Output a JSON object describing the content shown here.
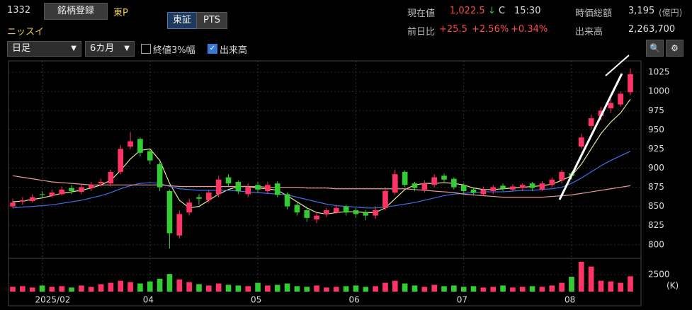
{
  "header": {
    "code": "1332",
    "register_button": "銘柄登録",
    "market": "東P",
    "name": "ニッスイ",
    "tabs": [
      "東証",
      "PTS"
    ],
    "price_label": "現在値",
    "price": "1,022.5",
    "arrow": "↓",
    "price_flag": "C",
    "time": "15:30",
    "change_label": "前日比",
    "change": "+25.5",
    "change_pct": "+2.56%",
    "change_pct2": "+0.34%",
    "mcap_label": "時価総額",
    "mcap": "3,195",
    "mcap_unit": "(億円)",
    "volume_label": "出来高",
    "volume": "2,263,700"
  },
  "toolbar": {
    "period": "日足",
    "range": "6カ月",
    "option1": "終値3%幅",
    "option2": "出来高"
  },
  "chart_data": {
    "type": "candlestick",
    "up_color": "#ff3366",
    "down_color": "#33cc33",
    "categories": [
      null,
      null,
      null,
      "2025/02",
      null,
      null,
      null,
      null,
      null,
      null,
      null,
      null,
      null,
      null,
      "04",
      null,
      null,
      null,
      null,
      null,
      null,
      null,
      null,
      null,
      null,
      "05",
      null,
      null,
      null,
      null,
      null,
      null,
      null,
      null,
      null,
      "06",
      null,
      null,
      null,
      null,
      null,
      null,
      null,
      null,
      null,
      null,
      "07",
      null,
      null,
      null,
      null,
      null,
      null,
      null,
      null,
      null,
      null,
      "08",
      null,
      null,
      null,
      null,
      null,
      null
    ],
    "open": [
      850,
      856,
      857,
      866,
      864,
      866,
      874,
      869,
      874,
      880,
      880,
      895,
      928,
      938,
      922,
      905,
      870,
      812,
      842,
      862,
      858,
      866,
      888,
      882,
      866,
      878,
      870,
      880,
      866,
      852,
      845,
      833,
      840,
      842,
      850,
      845,
      842,
      838,
      848,
      868,
      895,
      880,
      872,
      878,
      890,
      886,
      878,
      872,
      866,
      870,
      877,
      872,
      874,
      880,
      872,
      878,
      884,
      893,
      928,
      955,
      968,
      978,
      983,
      999
    ],
    "high": [
      860,
      862,
      866,
      870,
      872,
      876,
      878,
      879,
      882,
      886,
      898,
      930,
      947,
      940,
      925,
      908,
      872,
      845,
      860,
      866,
      872,
      890,
      892,
      884,
      880,
      882,
      882,
      883,
      868,
      856,
      848,
      842,
      848,
      852,
      852,
      848,
      845,
      850,
      875,
      898,
      897,
      882,
      884,
      892,
      893,
      888,
      880,
      875,
      876,
      878,
      880,
      879,
      880,
      882,
      883,
      888,
      898,
      895,
      945,
      970,
      980,
      990,
      1000,
      1030
    ],
    "low": [
      848,
      852,
      855,
      862,
      862,
      864,
      866,
      866,
      870,
      876,
      876,
      892,
      925,
      915,
      905,
      870,
      795,
      808,
      838,
      852,
      855,
      862,
      876,
      866,
      862,
      868,
      866,
      862,
      846,
      838,
      830,
      828,
      836,
      840,
      838,
      835,
      832,
      834,
      845,
      865,
      875,
      870,
      868,
      875,
      882,
      872,
      866,
      864,
      864,
      866,
      870,
      870,
      870,
      870,
      870,
      875,
      880,
      885,
      925,
      950,
      962,
      972,
      980,
      995
    ],
    "close": [
      855,
      858,
      862,
      865,
      868,
      872,
      870,
      875,
      878,
      882,
      895,
      925,
      935,
      920,
      910,
      875,
      815,
      840,
      855,
      860,
      868,
      885,
      880,
      870,
      875,
      872,
      878,
      865,
      850,
      842,
      835,
      838,
      845,
      848,
      842,
      840,
      838,
      845,
      870,
      892,
      878,
      874,
      880,
      888,
      885,
      875,
      870,
      868,
      872,
      875,
      873,
      876,
      878,
      874,
      880,
      885,
      895,
      890,
      940,
      965,
      975,
      985,
      997,
      1022.5
    ],
    "volume": [
      700,
      800,
      600,
      900,
      700,
      800,
      600,
      900,
      700,
      1100,
      1300,
      1600,
      1400,
      1200,
      1500,
      1900,
      2600,
      1800,
      1400,
      1100,
      900,
      1200,
      1000,
      900,
      800,
      1300,
      900,
      1000,
      1200,
      800,
      700,
      900,
      600,
      700,
      800,
      900,
      700,
      800,
      1300,
      1600,
      1200,
      900,
      700,
      1000,
      800,
      900,
      700,
      800,
      600,
      700,
      900,
      600,
      700,
      800,
      700,
      900,
      1300,
      2200,
      4400,
      3700,
      1600,
      1500,
      1300,
      2263.7
    ],
    "ma_lines": [
      {
        "color": "#e8e890",
        "values": [
          856,
          857,
          859,
          861,
          864,
          867,
          869,
          871,
          874,
          878,
          884,
          897,
          912,
          923,
          925,
          910,
          880,
          858,
          848,
          850,
          858,
          866,
          872,
          876,
          876,
          874,
          873,
          871,
          864,
          856,
          848,
          842,
          840,
          842,
          843,
          843,
          842,
          842,
          848,
          860,
          872,
          878,
          880,
          880,
          881,
          880,
          878,
          874,
          872,
          872,
          873,
          874,
          875,
          876,
          877,
          879,
          884,
          890,
          905,
          925,
          945,
          960,
          972,
          990
        ]
      },
      {
        "color": "#3f6fe8",
        "values": [
          848,
          849,
          850,
          851,
          852,
          854,
          856,
          858,
          861,
          864,
          868,
          873,
          877,
          880,
          881,
          880,
          876,
          873,
          872,
          871,
          871,
          871,
          871,
          870,
          869,
          868,
          867,
          866,
          865,
          862,
          859,
          856,
          853,
          851,
          850,
          849,
          848,
          848,
          849,
          851,
          853,
          855,
          858,
          861,
          864,
          866,
          867,
          868,
          869,
          869,
          869,
          870,
          871,
          871,
          872,
          873,
          875,
          880,
          887,
          895,
          903,
          910,
          916,
          922
        ]
      },
      {
        "color": "#e79a9a",
        "values": [
          890,
          888,
          886,
          884,
          882,
          881,
          880,
          879,
          878,
          878,
          878,
          878,
          878,
          878,
          878,
          878,
          877,
          876,
          876,
          876,
          876,
          876,
          876,
          876,
          876,
          876,
          875,
          875,
          875,
          875,
          874,
          874,
          874,
          873,
          873,
          873,
          873,
          873,
          873,
          873,
          873,
          872,
          871,
          870,
          869,
          868,
          866,
          865,
          864,
          863,
          862,
          862,
          862,
          862,
          862,
          863,
          864,
          865,
          867,
          869,
          871,
          873,
          875,
          877
        ]
      }
    ],
    "ylim": [
      785,
      1039
    ],
    "yticks": [
      800,
      825,
      850,
      875,
      900,
      925,
      950,
      975,
      1000,
      1025
    ],
    "volume_ylim": [
      0,
      4600
    ],
    "volume_yticks": [
      2500
    ],
    "volume_unit": "(K)",
    "grid": true
  }
}
